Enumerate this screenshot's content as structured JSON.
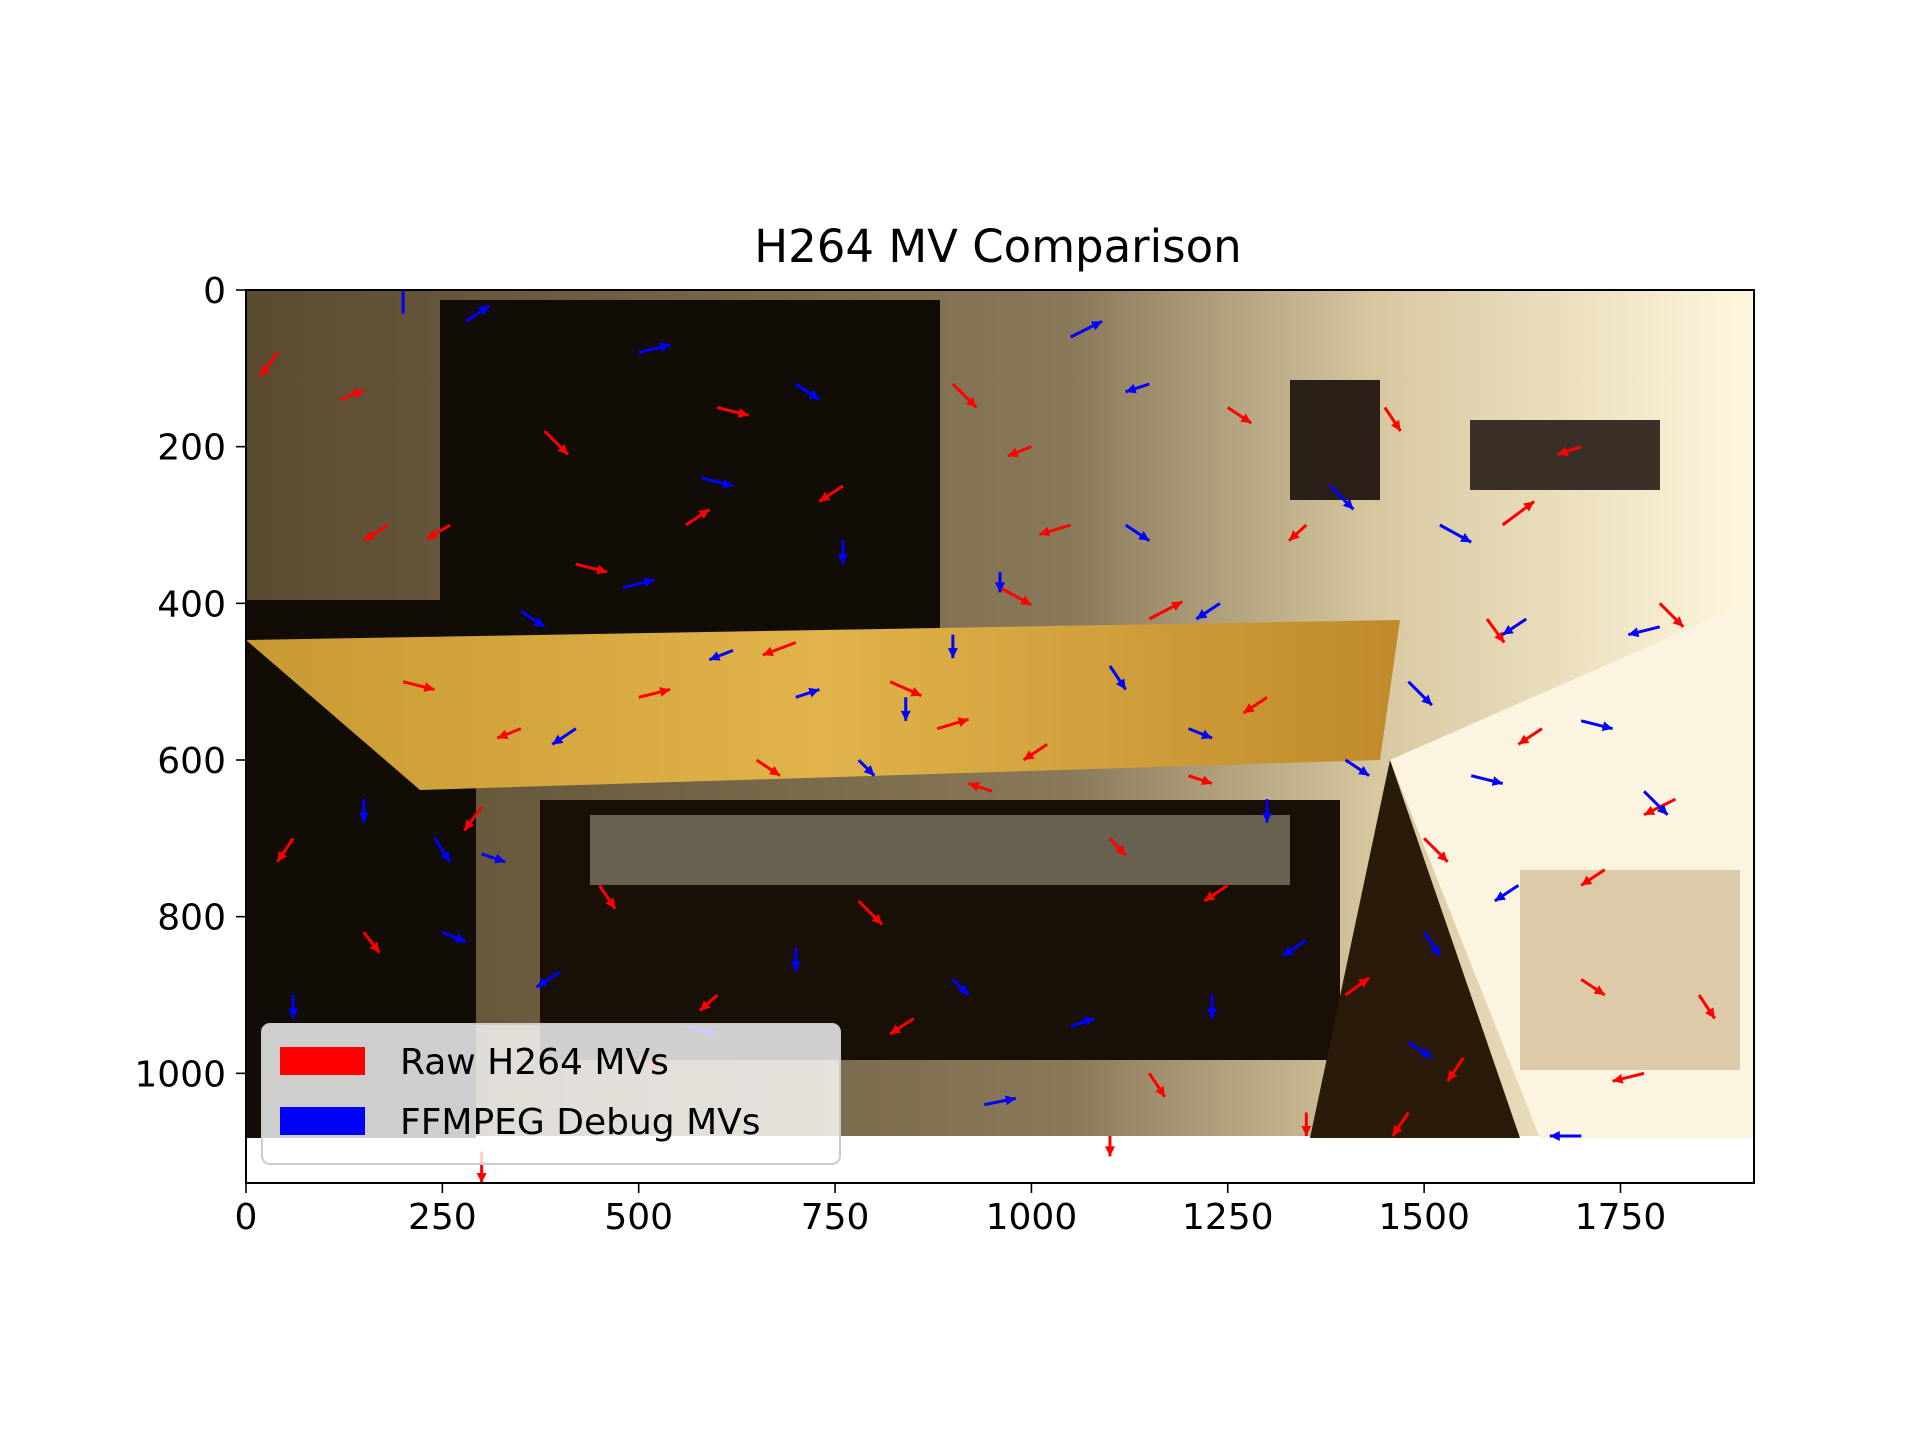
{
  "chart_data": {
    "type": "quiver",
    "title": "H264 MV Comparison",
    "xlabel": "",
    "ylabel": "",
    "xlim": [
      0,
      1920
    ],
    "ylim": [
      1140,
      0
    ],
    "xticks": [
      "0",
      "250",
      "500",
      "750",
      "1000",
      "1250",
      "1500",
      "1750"
    ],
    "xtick_values": [
      0,
      250,
      500,
      750,
      1000,
      1250,
      1500,
      1750
    ],
    "yticks": [
      "0",
      "200",
      "400",
      "600",
      "800",
      "1000"
    ],
    "ytick_values": [
      0,
      200,
      400,
      600,
      800,
      1000
    ],
    "background_image": {
      "width": 1920,
      "height": 1080
    },
    "grid": false,
    "legend": {
      "placement": "lower-left",
      "entries": [
        {
          "label": "Raw H264 MVs",
          "color": "#ff0000"
        },
        {
          "label": "FFMPEG Debug MVs",
          "color": "#0000ff"
        }
      ]
    },
    "series": [
      {
        "name": "Raw H264 MVs",
        "color": "#ff0000",
        "vectors": [
          [
            40,
            80,
            -22,
            30
          ],
          [
            120,
            140,
            30,
            -12
          ],
          [
            260,
            300,
            -30,
            18
          ],
          [
            420,
            350,
            40,
            10
          ],
          [
            560,
            300,
            30,
            -20
          ],
          [
            700,
            450,
            -42,
            16
          ],
          [
            820,
            500,
            40,
            18
          ],
          [
            900,
            120,
            30,
            30
          ],
          [
            1000,
            200,
            -30,
            12
          ],
          [
            1150,
            420,
            42,
            -22
          ],
          [
            1300,
            520,
            -30,
            20
          ],
          [
            1450,
            150,
            20,
            30
          ],
          [
            1600,
            300,
            40,
            -30
          ],
          [
            1700,
            200,
            -30,
            10
          ],
          [
            1800,
            400,
            30,
            30
          ],
          [
            1820,
            650,
            -40,
            20
          ],
          [
            1700,
            880,
            30,
            20
          ],
          [
            1550,
            980,
            -20,
            30
          ],
          [
            1400,
            900,
            30,
            -22
          ],
          [
            1250,
            760,
            -30,
            20
          ],
          [
            1100,
            700,
            20,
            22
          ],
          [
            950,
            640,
            -30,
            -10
          ],
          [
            780,
            780,
            30,
            30
          ],
          [
            600,
            900,
            -22,
            20
          ],
          [
            450,
            760,
            20,
            30
          ],
          [
            300,
            660,
            -22,
            30
          ],
          [
            150,
            820,
            20,
            26
          ],
          [
            60,
            700,
            -20,
            30
          ],
          [
            200,
            500,
            40,
            10
          ],
          [
            350,
            560,
            -30,
            12
          ],
          [
            500,
            520,
            40,
            -10
          ],
          [
            650,
            600,
            30,
            20
          ],
          [
            880,
            560,
            40,
            -12
          ],
          [
            1020,
            580,
            -30,
            20
          ],
          [
            1200,
            620,
            30,
            10
          ],
          [
            1350,
            300,
            -22,
            20
          ],
          [
            1500,
            700,
            30,
            30
          ],
          [
            1650,
            560,
            -30,
            20
          ],
          [
            1850,
            900,
            20,
            30
          ],
          [
            1780,
            1000,
            -40,
            10
          ],
          [
            1480,
            1050,
            -20,
            30
          ],
          [
            1150,
            1000,
            20,
            30
          ],
          [
            850,
            930,
            -30,
            20
          ],
          [
            500,
            980,
            30,
            12
          ],
          [
            300,
            1100,
            0,
            40
          ],
          [
            1100,
            1080,
            0,
            26
          ],
          [
            1350,
            1050,
            0,
            30
          ],
          [
            760,
            250,
            -30,
            20
          ],
          [
            600,
            150,
            40,
            10
          ],
          [
            380,
            180,
            30,
            30
          ],
          [
            180,
            300,
            -30,
            20
          ],
          [
            1250,
            150,
            30,
            20
          ],
          [
            1580,
            420,
            22,
            30
          ],
          [
            1730,
            740,
            -30,
            20
          ],
          [
            960,
            380,
            40,
            22
          ],
          [
            1050,
            300,
            -40,
            12
          ]
        ]
      },
      {
        "name": "FFMPEG Debug MVs",
        "color": "#0000ff",
        "vectors": [
          [
            200,
            30,
            0,
            -42
          ],
          [
            280,
            40,
            30,
            -20
          ],
          [
            500,
            80,
            40,
            -10
          ],
          [
            700,
            120,
            30,
            20
          ],
          [
            1050,
            60,
            40,
            -20
          ],
          [
            1150,
            120,
            -30,
            10
          ],
          [
            1380,
            250,
            30,
            30
          ],
          [
            1520,
            300,
            40,
            22
          ],
          [
            1630,
            420,
            -30,
            20
          ],
          [
            1700,
            550,
            40,
            10
          ],
          [
            1780,
            640,
            30,
            30
          ],
          [
            1800,
            430,
            -40,
            10
          ],
          [
            1620,
            760,
            -30,
            20
          ],
          [
            1500,
            820,
            20,
            30
          ],
          [
            1400,
            600,
            30,
            20
          ],
          [
            1300,
            650,
            0,
            30
          ],
          [
            1200,
            560,
            30,
            12
          ],
          [
            1100,
            480,
            20,
            30
          ],
          [
            900,
            440,
            0,
            30
          ],
          [
            960,
            360,
            0,
            26
          ],
          [
            840,
            520,
            0,
            30
          ],
          [
            780,
            600,
            20,
            20
          ],
          [
            700,
            520,
            30,
            -10
          ],
          [
            620,
            460,
            -30,
            12
          ],
          [
            480,
            380,
            40,
            -10
          ],
          [
            350,
            410,
            30,
            20
          ],
          [
            420,
            560,
            -30,
            20
          ],
          [
            300,
            720,
            30,
            10
          ],
          [
            150,
            650,
            0,
            30
          ],
          [
            60,
            900,
            0,
            30
          ],
          [
            250,
            820,
            30,
            12
          ],
          [
            400,
            870,
            -30,
            20
          ],
          [
            560,
            940,
            40,
            10
          ],
          [
            700,
            840,
            0,
            30
          ],
          [
            900,
            880,
            20,
            20
          ],
          [
            1050,
            940,
            30,
            -10
          ],
          [
            1230,
            900,
            0,
            30
          ],
          [
            1350,
            830,
            -30,
            20
          ],
          [
            1480,
            960,
            30,
            20
          ],
          [
            1700,
            1080,
            -40,
            0
          ],
          [
            1560,
            620,
            40,
            10
          ],
          [
            1480,
            500,
            30,
            30
          ],
          [
            1240,
            400,
            -30,
            20
          ],
          [
            1120,
            300,
            30,
            20
          ],
          [
            760,
            320,
            0,
            30
          ],
          [
            580,
            240,
            40,
            10
          ],
          [
            240,
            700,
            20,
            30
          ],
          [
            940,
            1040,
            40,
            -8
          ]
        ]
      }
    ]
  }
}
